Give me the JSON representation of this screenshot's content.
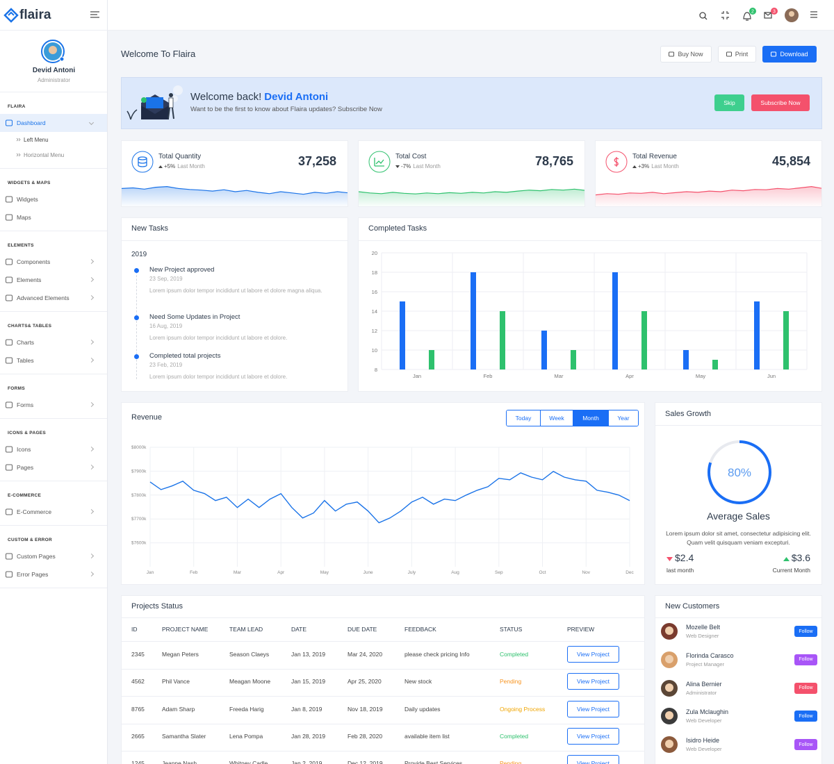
{
  "brand": "flaira",
  "profile": {
    "name": "Devid Antoni",
    "role": "Administrator"
  },
  "notifications": {
    "bell": 2,
    "mail": 3
  },
  "sidebar": [
    {
      "heading": "FLAIRA",
      "items": [
        {
          "label": "Dashboard",
          "children": [
            "Left Menu",
            "Horizontal Menu"
          ]
        }
      ]
    },
    {
      "heading": "WIDGETS & MAPS",
      "items": [
        {
          "label": "Widgets"
        },
        {
          "label": "Maps"
        }
      ]
    },
    {
      "heading": "ELEMENTS",
      "items": [
        {
          "label": "Components"
        },
        {
          "label": "Elements"
        },
        {
          "label": "Advanced Elements"
        }
      ]
    },
    {
      "heading": "CHARTS& TABLES",
      "items": [
        {
          "label": "Charts"
        },
        {
          "label": "Tables"
        }
      ]
    },
    {
      "heading": "FORMS",
      "items": [
        {
          "label": "Forms"
        }
      ]
    },
    {
      "heading": "ICONS & PAGES",
      "items": [
        {
          "label": "Icons"
        },
        {
          "label": "Pages"
        }
      ]
    },
    {
      "heading": "E-COMMERCE",
      "items": [
        {
          "label": "E-Commerce"
        }
      ]
    },
    {
      "heading": "CUSTOM & ERROR",
      "items": [
        {
          "label": "Custom Pages"
        },
        {
          "label": "Error Pages"
        }
      ]
    }
  ],
  "page_title": "Welcome To Flaira",
  "actions": [
    "Buy Now",
    "Print",
    "Download"
  ],
  "banner": {
    "greeting": "Welcome back!",
    "name": "Devid Antoni",
    "text": "Want to be the first to know about Flaira updates? Subscribe Now",
    "buttons": [
      "Skip",
      "Subscribe Now"
    ]
  },
  "stats": [
    {
      "label": "Total Quantity",
      "change": "+5%",
      "period": "Last Month",
      "value": "37,258",
      "trend": "up",
      "color": "#1a73e8",
      "spark": {
        "ylim": [
          0,
          100
        ],
        "values": [
          60,
          62,
          58,
          64,
          66,
          60,
          57,
          55,
          52,
          56,
          50,
          54,
          48,
          44,
          50,
          46,
          42,
          48,
          45,
          50,
          46
        ]
      }
    },
    {
      "label": "Total Cost",
      "change": "-7%",
      "period": "Last Month",
      "value": "78,765",
      "trend": "down",
      "color": "#2ec16d",
      "spark": {
        "ylim": [
          0,
          100
        ],
        "values": [
          50,
          46,
          44,
          48,
          45,
          43,
          46,
          44,
          47,
          45,
          48,
          46,
          50,
          48,
          52,
          55,
          53,
          57,
          55,
          58,
          54
        ]
      }
    },
    {
      "label": "Total Revenue",
      "change": "+3%",
      "period": "Last Month",
      "value": "45,854",
      "trend": "up",
      "color": "#f4516c",
      "spark": {
        "ylim": [
          0,
          100
        ],
        "values": [
          40,
          44,
          42,
          46,
          45,
          48,
          44,
          47,
          50,
          48,
          52,
          50,
          55,
          53,
          57,
          56,
          60,
          58,
          62,
          66,
          60
        ]
      }
    }
  ],
  "new_tasks": {
    "title": "New Tasks",
    "year": "2019",
    "items": [
      {
        "title": "New Project approved",
        "date": "23 Sep, 2019",
        "text": "Lorem ipsum dolor tempor incididunt ut labore et dolore magna aliqua."
      },
      {
        "title": "Need Some Updates in Project",
        "date": "16 Aug, 2019",
        "text": "Lorem ipsum dolor tempor incididunt ut labore et dolore."
      },
      {
        "title": "Completed total projects",
        "date": "23 Feb, 2019",
        "text": "Lorem ipsum dolor tempor incididunt ut labore et dolore."
      }
    ]
  },
  "completed_tasks": {
    "title": "Completed Tasks",
    "chart": {
      "type": "bar",
      "categories": [
        "Jan",
        "Feb",
        "Mar",
        "Apr",
        "May",
        "Jun"
      ],
      "series": [
        {
          "color": "#1a6ef5",
          "values": [
            15,
            18,
            12,
            18,
            10,
            15
          ]
        },
        {
          "color": "#2ec16d",
          "values": [
            10,
            14,
            10,
            14,
            9,
            14
          ]
        }
      ],
      "ylim": [
        8,
        20
      ],
      "yticks": [
        8,
        10,
        12,
        14,
        16,
        18,
        20
      ],
      "grid": true
    }
  },
  "revenue": {
    "title": "Revenue",
    "tabs": [
      "Today",
      "Week",
      "Month",
      "Year"
    ],
    "active_tab": 2,
    "chart": {
      "type": "line",
      "color": "#1a73e8",
      "x": [
        0,
        0.25,
        0.5,
        0.75,
        1,
        1.25,
        1.5,
        1.75,
        2,
        2.25,
        2.5,
        2.75,
        3,
        3.25,
        3.5,
        3.75,
        4,
        4.25,
        4.5,
        4.75,
        5,
        5.25,
        5.5,
        5.75,
        6,
        6.25,
        6.5,
        6.75,
        7,
        7.25,
        7.5,
        7.75,
        8,
        8.25,
        8.5,
        8.75,
        9,
        9.25,
        9.5,
        9.75,
        10,
        10.25,
        10.5,
        10.75,
        11
      ],
      "values": [
        7855,
        7823,
        7838,
        7858,
        7820,
        7806,
        7777,
        7791,
        7748,
        7783,
        7748,
        7783,
        7806,
        7748,
        7704,
        7725,
        7777,
        7733,
        7762,
        7771,
        7733,
        7684,
        7704,
        7733,
        7771,
        7791,
        7762,
        7783,
        7777,
        7800,
        7820,
        7835,
        7870,
        7864,
        7893,
        7875,
        7864,
        7899,
        7875,
        7864,
        7858,
        7820,
        7812,
        7800,
        7777
      ],
      "xlim": [
        0,
        11
      ],
      "xticks": [
        {
          "value": 0,
          "label": "Jan"
        },
        {
          "value": 1,
          "label": "Feb"
        },
        {
          "value": 2,
          "label": "Mar"
        },
        {
          "value": 3,
          "label": "Apr"
        },
        {
          "value": 4,
          "label": "May"
        },
        {
          "value": 5,
          "label": "June"
        },
        {
          "value": 6,
          "label": "July"
        },
        {
          "value": 7,
          "label": "Aug"
        },
        {
          "value": 8,
          "label": "Sep"
        },
        {
          "value": 9,
          "label": "Oct"
        },
        {
          "value": 10,
          "label": "Nov"
        },
        {
          "value": 11,
          "label": "Dec"
        }
      ],
      "ylim": [
        7500,
        8000
      ],
      "yticks": [
        {
          "value": 7600,
          "label": "$7600k"
        },
        {
          "value": 7700,
          "label": "$7700k"
        },
        {
          "value": 7800,
          "label": "$7800k"
        },
        {
          "value": 7900,
          "label": "$7900k"
        },
        {
          "value": 8000,
          "label": "$8000k"
        }
      ],
      "grid": true
    }
  },
  "sales_growth": {
    "title": "Sales Growth",
    "gauge": {
      "value": 80,
      "value_label": "80%",
      "max": 100
    },
    "heading": "Average Sales",
    "text": "Lorem ipsum dolor sit amet, consectetur adipisicing elit. Quam velit quisquam veniam excepturi.",
    "last": {
      "value": "$2.4",
      "label": "last month"
    },
    "current": {
      "value": "$3.6",
      "label": "Current Month"
    }
  },
  "projects": {
    "title": "Projects Status",
    "columns": [
      "ID",
      "PROJECT NAME",
      "TEAM LEAD",
      "DATE",
      "DUE DATE",
      "FEEDBACK",
      "STATUS",
      "PREVIEW"
    ],
    "button": "View Project",
    "rows": [
      [
        "2345",
        "Megan Peters",
        "Season Claeys",
        "Jan 13, 2019",
        "Mar 24, 2020",
        "please check pricing Info",
        "Completed"
      ],
      [
        "4562",
        "Phil Vance",
        "Meagan Moone",
        "Jan 15, 2019",
        "Apr 25, 2020",
        "New stock",
        "Pending"
      ],
      [
        "8765",
        "Adam Sharp",
        "Freeda Harig",
        "Jan 8, 2019",
        "Nov 18, 2019",
        "Daily updates",
        "Ongoing Process"
      ],
      [
        "2665",
        "Samantha Slater",
        "Lena Pompa",
        "Jan 28, 2019",
        "Feb 28, 2020",
        "available item list",
        "Completed"
      ],
      [
        "1245",
        "Jeanne Nash",
        "Whitney Cadle",
        "Jan 2, 2019",
        "Dec 12, 2019",
        "Provide Best Services",
        "Pending"
      ]
    ],
    "status_colors": {
      "Completed": "#2ec16d",
      "Pending": "#f7931e",
      "Ongoing Process": "#f0a500"
    }
  },
  "customers": {
    "title": "New Customers",
    "items": [
      {
        "name": "Mozelle Belt",
        "role": "Web Designer",
        "button": "Follow",
        "color": "#1a6ef5"
      },
      {
        "name": "Florinda Carasco",
        "role": "Project Manager",
        "button": "Follow",
        "color": "#a855f7"
      },
      {
        "name": "Alina Bernier",
        "role": "Administrator",
        "button": "Follow",
        "color": "#f4516c"
      },
      {
        "name": "Zula Mclaughin",
        "role": "Web Developer",
        "button": "Follow",
        "color": "#1a6ef5"
      },
      {
        "name": "Isidro Heide",
        "role": "Web Developer",
        "button": "Follow",
        "color": "#a855f7"
      }
    ]
  }
}
